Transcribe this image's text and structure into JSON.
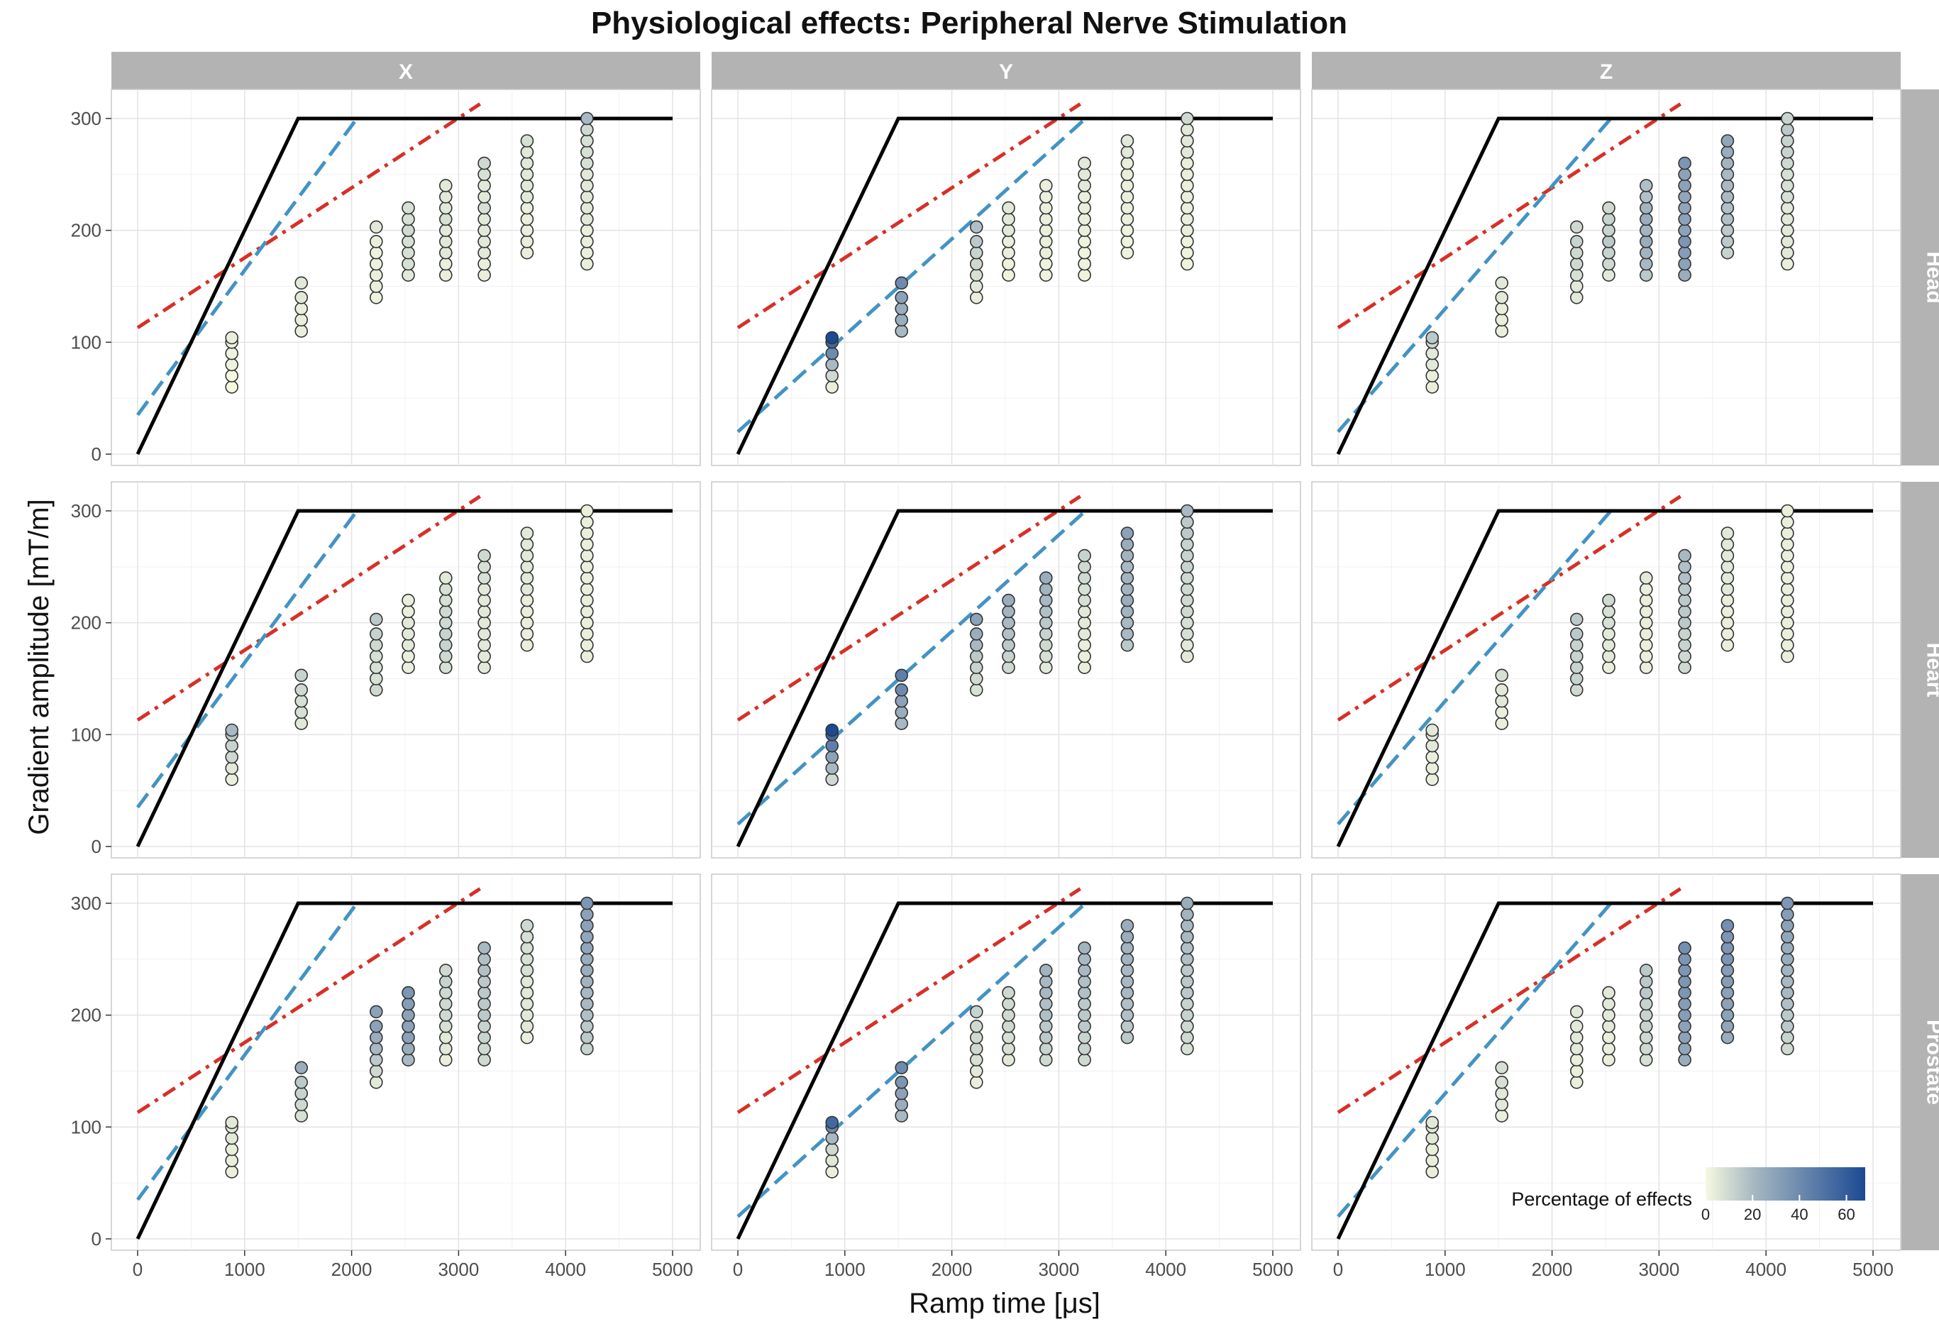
{
  "chart_data": {
    "type": "scatter",
    "title": "Physiological effects: Peripheral Nerve Stimulation",
    "xlabel": "Ramp time [μs]",
    "ylabel": "Gradient amplitude [mT/m]",
    "xlim": [
      0,
      5000
    ],
    "ylim": [
      0,
      300
    ],
    "x_ticks": [
      0,
      1000,
      2000,
      3000,
      4000,
      5000
    ],
    "y_ticks": [
      0,
      100,
      200,
      300
    ],
    "grid": true,
    "facet_columns": [
      "X",
      "Y",
      "Z"
    ],
    "facet_rows": [
      "Head",
      "Heart",
      "Prostate"
    ],
    "legend": {
      "title": "Percentage of effects",
      "ticks": [
        0,
        20,
        40,
        60
      ],
      "range": [
        0,
        68
      ],
      "low_color": "#f5f9e0",
      "high_color": "#1b4a93",
      "placement": "bottom-right"
    },
    "reference_lines": {
      "black": {
        "color": "#000000",
        "style": "solid",
        "points": [
          [
            0,
            0
          ],
          [
            1500,
            300
          ],
          [
            5000,
            300
          ]
        ]
      },
      "blue": {
        "color": "#4393c3",
        "style": "dashed",
        "X": [
          [
            0,
            35
          ],
          [
            2050,
            300
          ]
        ],
        "Y": [
          [
            0,
            20
          ],
          [
            3250,
            300
          ]
        ],
        "Z": [
          [
            0,
            20
          ],
          [
            2550,
            300
          ]
        ]
      },
      "red": {
        "color": "#d73027",
        "style": "dash-dot",
        "points": [
          [
            0,
            113
          ],
          [
            3200,
            313
          ]
        ]
      }
    },
    "point_groups": [
      {
        "x": 880,
        "amplitudes": [
          60,
          70,
          80,
          90,
          100,
          104
        ]
      },
      {
        "x": 1530,
        "amplitudes": [
          110,
          120,
          130,
          140,
          153
        ]
      },
      {
        "x": 2230,
        "amplitudes": [
          140,
          150,
          160,
          170,
          180,
          190,
          203
        ]
      },
      {
        "x": 2530,
        "amplitudes": [
          160,
          170,
          180,
          190,
          200,
          210,
          220
        ]
      },
      {
        "x": 2880,
        "amplitudes": [
          160,
          170,
          180,
          190,
          200,
          210,
          220,
          230,
          240
        ]
      },
      {
        "x": 3240,
        "amplitudes": [
          160,
          170,
          180,
          190,
          200,
          210,
          220,
          230,
          240,
          250,
          260
        ]
      },
      {
        "x": 3640,
        "amplitudes": [
          180,
          190,
          200,
          210,
          220,
          230,
          240,
          250,
          260,
          270,
          280
        ]
      },
      {
        "x": 4200,
        "amplitudes": [
          170,
          180,
          190,
          200,
          210,
          220,
          230,
          240,
          250,
          260,
          270,
          280,
          290,
          300
        ]
      }
    ],
    "percent_by_panel": {
      "Head": {
        "X": [
          [
            0,
            0,
            2,
            2,
            2,
            3
          ],
          [
            3,
            3,
            3,
            5,
            5
          ],
          [
            2,
            3,
            3,
            2,
            2,
            3,
            5
          ],
          [
            5,
            8,
            8,
            8,
            10,
            8,
            8
          ],
          [
            3,
            3,
            5,
            5,
            5,
            8,
            5,
            5,
            5
          ],
          [
            3,
            3,
            5,
            5,
            5,
            5,
            8,
            5,
            5,
            8,
            10
          ],
          [
            3,
            3,
            3,
            3,
            3,
            5,
            5,
            5,
            5,
            5,
            8
          ],
          [
            3,
            3,
            3,
            3,
            5,
            5,
            5,
            5,
            5,
            8,
            8,
            8,
            10,
            20
          ]
        ],
        "Y": [
          [
            3,
            10,
            20,
            40,
            55,
            68
          ],
          [
            20,
            25,
            25,
            30,
            40
          ],
          [
            3,
            5,
            8,
            10,
            12,
            15,
            18
          ],
          [
            2,
            2,
            3,
            3,
            5,
            5,
            5
          ],
          [
            2,
            2,
            3,
            3,
            3,
            3,
            3,
            3,
            3
          ],
          [
            2,
            2,
            2,
            2,
            3,
            3,
            3,
            3,
            5,
            5,
            5
          ],
          [
            2,
            2,
            2,
            3,
            3,
            3,
            3,
            3,
            3,
            5,
            5
          ],
          [
            2,
            2,
            2,
            3,
            3,
            3,
            3,
            3,
            3,
            3,
            5,
            5,
            5,
            10
          ]
        ],
        "Z": [
          [
            3,
            3,
            5,
            5,
            10,
            15
          ],
          [
            3,
            3,
            3,
            5,
            5
          ],
          [
            5,
            5,
            8,
            10,
            10,
            12,
            10
          ],
          [
            5,
            10,
            12,
            15,
            12,
            12,
            10
          ],
          [
            15,
            20,
            22,
            25,
            22,
            25,
            22,
            18,
            18
          ],
          [
            25,
            30,
            32,
            35,
            30,
            30,
            28,
            28,
            30,
            30,
            35
          ],
          [
            12,
            15,
            15,
            18,
            18,
            20,
            20,
            20,
            22,
            25,
            28
          ],
          [
            3,
            5,
            5,
            5,
            5,
            5,
            8,
            8,
            8,
            10,
            12,
            12,
            15,
            12
          ]
        ]
      },
      "Heart": {
        "X": [
          [
            3,
            5,
            10,
            12,
            15,
            20
          ],
          [
            5,
            8,
            8,
            10,
            12
          ],
          [
            10,
            8,
            8,
            8,
            10,
            12,
            15
          ],
          [
            3,
            3,
            5,
            5,
            5,
            3,
            3
          ],
          [
            8,
            10,
            12,
            12,
            10,
            10,
            8,
            8,
            5
          ],
          [
            5,
            5,
            5,
            5,
            5,
            5,
            5,
            5,
            8,
            8,
            10
          ],
          [
            3,
            3,
            3,
            3,
            3,
            5,
            5,
            5,
            5,
            5,
            5
          ],
          [
            3,
            3,
            3,
            3,
            3,
            3,
            3,
            3,
            3,
            3,
            3,
            3,
            3,
            3
          ]
        ],
        "Y": [
          [
            10,
            20,
            30,
            45,
            55,
            68
          ],
          [
            20,
            25,
            30,
            40,
            45
          ],
          [
            8,
            10,
            12,
            15,
            20,
            25,
            30
          ],
          [
            10,
            12,
            15,
            18,
            20,
            22,
            25
          ],
          [
            5,
            8,
            10,
            12,
            15,
            18,
            20,
            22,
            25
          ],
          [
            3,
            3,
            3,
            5,
            5,
            5,
            8,
            8,
            10,
            10,
            12
          ],
          [
            15,
            20,
            20,
            22,
            25,
            22,
            22,
            20,
            22,
            25,
            30
          ],
          [
            5,
            5,
            8,
            8,
            10,
            10,
            10,
            10,
            12,
            12,
            12,
            15,
            15,
            20
          ]
        ],
        "Z": [
          [
            3,
            3,
            3,
            5,
            5,
            5
          ],
          [
            3,
            3,
            5,
            5,
            8
          ],
          [
            10,
            12,
            12,
            12,
            12,
            15,
            15
          ],
          [
            3,
            5,
            5,
            5,
            8,
            8,
            10
          ],
          [
            3,
            3,
            3,
            3,
            3,
            3,
            3,
            3,
            5
          ],
          [
            10,
            10,
            12,
            12,
            15,
            15,
            15,
            15,
            18,
            18,
            20
          ],
          [
            3,
            3,
            3,
            3,
            3,
            5,
            5,
            5,
            5,
            5,
            5
          ],
          [
            3,
            3,
            3,
            3,
            3,
            3,
            3,
            3,
            3,
            3,
            3,
            3,
            3,
            3
          ]
        ]
      },
      "Prostate": {
        "X": [
          [
            3,
            3,
            3,
            5,
            5,
            5
          ],
          [
            8,
            10,
            12,
            15,
            25
          ],
          [
            5,
            10,
            15,
            20,
            25,
            30,
            30
          ],
          [
            20,
            25,
            30,
            30,
            30,
            32,
            35
          ],
          [
            3,
            5,
            5,
            8,
            10,
            10,
            10,
            12,
            10
          ],
          [
            10,
            10,
            12,
            12,
            15,
            15,
            15,
            15,
            18,
            18,
            20
          ],
          [
            3,
            5,
            5,
            5,
            5,
            5,
            8,
            8,
            8,
            8,
            10
          ],
          [
            12,
            15,
            15,
            18,
            20,
            20,
            22,
            25,
            25,
            28,
            28,
            30,
            30,
            35
          ]
        ],
        "Y": [
          [
            3,
            5,
            10,
            20,
            40,
            55
          ],
          [
            20,
            25,
            30,
            35,
            40
          ],
          [
            3,
            5,
            8,
            10,
            10,
            10,
            12
          ],
          [
            5,
            8,
            8,
            10,
            10,
            10,
            10
          ],
          [
            10,
            12,
            15,
            15,
            18,
            18,
            20,
            20,
            22
          ],
          [
            10,
            12,
            12,
            15,
            15,
            15,
            18,
            18,
            20,
            20,
            22
          ],
          [
            15,
            15,
            18,
            18,
            20,
            20,
            20,
            22,
            22,
            25,
            25
          ],
          [
            8,
            10,
            10,
            12,
            12,
            15,
            15,
            15,
            18,
            18,
            20,
            20,
            22,
            25
          ]
        ],
        "Z": [
          [
            3,
            3,
            3,
            5,
            5,
            5
          ],
          [
            3,
            5,
            5,
            8,
            8
          ],
          [
            3,
            3,
            3,
            5,
            5,
            5,
            5
          ],
          [
            3,
            3,
            3,
            5,
            5,
            5,
            5
          ],
          [
            8,
            10,
            10,
            12,
            12,
            12,
            15,
            15,
            15
          ],
          [
            25,
            28,
            30,
            30,
            32,
            32,
            35,
            35,
            35,
            35,
            38
          ],
          [
            25,
            28,
            30,
            30,
            30,
            32,
            32,
            35,
            35,
            35,
            38
          ],
          [
            10,
            12,
            15,
            15,
            18,
            20,
            20,
            22,
            25,
            25,
            28,
            30,
            32,
            35
          ]
        ]
      }
    }
  }
}
